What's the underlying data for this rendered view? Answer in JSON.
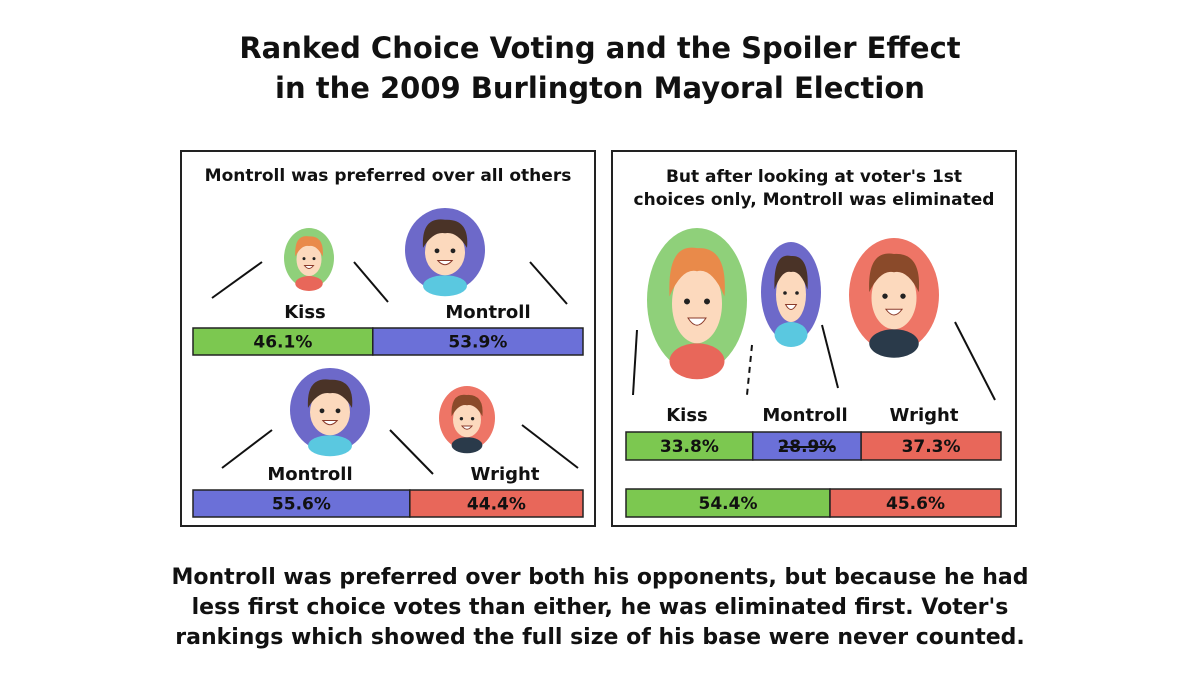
{
  "title": [
    "Ranked Choice Voting and the Spoiler Effect",
    "in the 2009 Burlington Mayoral Election"
  ],
  "panels": [
    {
      "heading": [
        "Montroll was preferred over all others"
      ],
      "matchups": [
        {
          "candidates": [
            "Kiss",
            "Montroll"
          ],
          "bar": [
            {
              "value": 46.1,
              "label": "46.1%",
              "color": "#7cc850"
            },
            {
              "value": 53.9,
              "label": "53.9%",
              "color": "#6b70d8"
            }
          ]
        },
        {
          "candidates": [
            "Montroll",
            "Wright"
          ],
          "bar": [
            {
              "value": 55.6,
              "label": "55.6%",
              "color": "#6b70d8"
            },
            {
              "value": 44.4,
              "label": "44.4%",
              "color": "#e8675a"
            }
          ]
        }
      ]
    },
    {
      "heading": [
        "But after looking at voter's 1st",
        "choices only, Montroll was eliminated"
      ],
      "candidates": [
        "Kiss",
        "Montroll",
        "Wright"
      ],
      "bars": [
        [
          {
            "value": 33.8,
            "label": "33.8%",
            "color": "#7cc850"
          },
          {
            "value": 28.9,
            "label": "28.9%",
            "color": "#6b70d8",
            "struck": true
          },
          {
            "value": 37.3,
            "label": "37.3%",
            "color": "#e8675a"
          }
        ],
        [
          {
            "value": 54.4,
            "label": "54.4%",
            "color": "#7cc850"
          },
          {
            "value": 45.6,
            "label": "45.6%",
            "color": "#e8675a"
          }
        ]
      ]
    }
  ],
  "footer": [
    "Montroll was preferred over both his opponents, but because he had",
    "less first choice votes than either, he was eliminated first. Voter's",
    "rankings which showed the full size of his base were never counted."
  ]
}
